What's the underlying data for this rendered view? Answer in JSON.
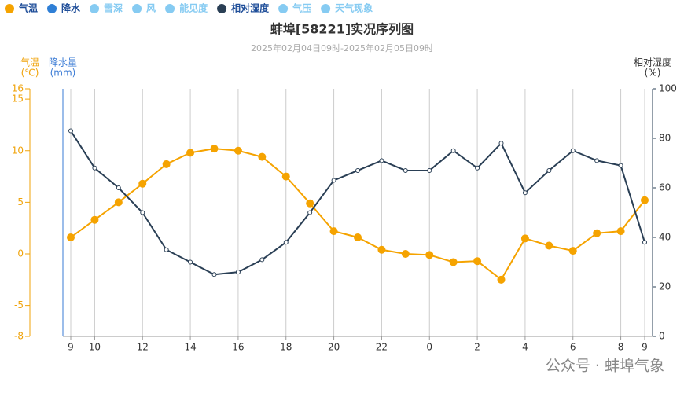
{
  "chart_data": {
    "type": "line",
    "title": "蚌埠[58221]实况序列图",
    "subtitle": "2025年02月04日09时-2025年02月05日09时",
    "y_label": [
      "气温",
      "(℃)"
    ],
    "precip_label": [
      "降水量",
      "(mm)"
    ],
    "y2_label": [
      "相对湿度",
      "(%)"
    ],
    "watermark": "公众号 · 蚌埠气象",
    "categories": [
      "9",
      "10",
      null,
      "12",
      null,
      "14",
      null,
      "16",
      null,
      "18",
      null,
      "20",
      null,
      "22",
      null,
      "0",
      null,
      "2",
      null,
      "4",
      null,
      "6",
      null,
      "8",
      "9"
    ],
    "series": [
      {
        "name": "气温",
        "color": "#f5a300",
        "active": true,
        "values": [
          1.6,
          3.3,
          5.0,
          6.8,
          8.7,
          9.8,
          10.2,
          10.0,
          9.4,
          7.5,
          4.9,
          2.2,
          1.6,
          0.4,
          0.0,
          -0.1,
          -0.8,
          -0.7,
          -2.5,
          1.5,
          0.8,
          0.3,
          2.0,
          2.2,
          5.2
        ]
      },
      {
        "name": "相对湿度",
        "color": "#2a3f55",
        "active": true,
        "axis": "y2",
        "values": [
          83,
          68,
          60,
          50,
          35,
          30,
          25,
          26,
          31,
          38,
          50,
          63,
          67,
          71,
          67,
          67,
          75,
          68,
          78,
          58,
          67,
          75,
          71,
          69,
          38
        ]
      }
    ],
    "other_legend_items": [
      {
        "name": "降水",
        "color": "#2f7fd6",
        "active": true
      },
      {
        "name": "雪深",
        "color": "#86cbf2",
        "active": false
      },
      {
        "name": "风",
        "color": "#86cbf2",
        "active": false
      },
      {
        "name": "能见度",
        "color": "#86cbf2",
        "active": false
      },
      {
        "name": "气压",
        "color": "#86cbf2",
        "active": false
      },
      {
        "name": "天气现象",
        "color": "#86cbf2",
        "active": false
      }
    ],
    "ylim": [
      -8,
      16
    ],
    "yticks": [
      -8,
      -5,
      0,
      5,
      10,
      15,
      16
    ],
    "y2lim": [
      0,
      100
    ],
    "y2ticks": [
      0,
      20,
      40,
      60,
      80,
      100
    ],
    "grid": true
  }
}
